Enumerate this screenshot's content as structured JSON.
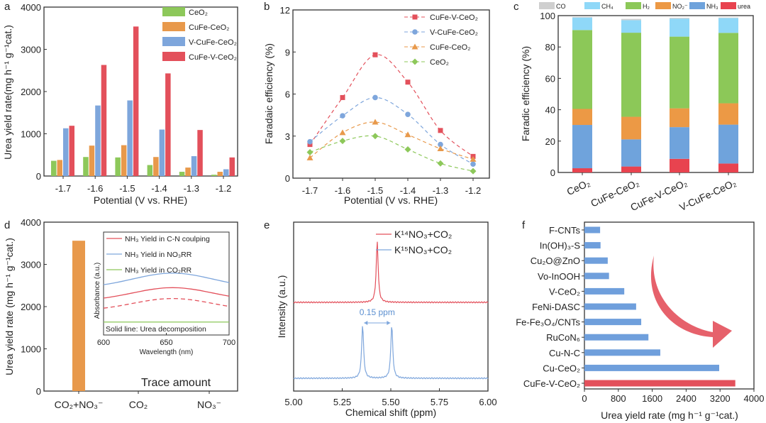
{
  "panel_labels": [
    "a",
    "b",
    "c",
    "d",
    "e",
    "f"
  ],
  "chart_data": [
    {
      "panel": "a",
      "type": "bar",
      "xlabel": "Potential (V vs. RHE)",
      "ylabel": "Urea yield rate(mg h⁻¹ g⁻¹cat.)",
      "ylim": [
        0,
        4000
      ],
      "yticks": [
        "0",
        "1000",
        "2000",
        "3000",
        "4000"
      ],
      "categories": [
        "-1.7",
        "-1.6",
        "-1.5",
        "-1.4",
        "-1.3",
        "-1.2"
      ],
      "series": [
        {
          "name": "CeO₂",
          "color": "#8dc85a",
          "values": [
            360,
            450,
            440,
            260,
            100,
            30
          ]
        },
        {
          "name": "CuFe-CeO₂",
          "color": "#e8994b",
          "values": [
            380,
            720,
            730,
            450,
            200,
            100
          ]
        },
        {
          "name": "V-CuFe-CeO₂",
          "color": "#7ea6dc",
          "values": [
            1130,
            1670,
            1790,
            1100,
            470,
            160
          ]
        },
        {
          "name": "CuFe-V-CeO₂",
          "color": "#e3505b",
          "values": [
            1190,
            2630,
            3540,
            2430,
            1090,
            440
          ]
        }
      ],
      "legend": "top-right"
    },
    {
      "panel": "b",
      "type": "line",
      "xlabel": "Potential (V vs. RHE)",
      "ylabel": "Faradaic efficiency (%)",
      "ylim": [
        0,
        12
      ],
      "yticks": [
        "0",
        "3",
        "6",
        "9",
        "12"
      ],
      "x": [
        "-1.7",
        "-1.6",
        "-1.5",
        "-1.4",
        "-1.3",
        "-1.2"
      ],
      "series": [
        {
          "name": "CuFe-V-CeO₂",
          "color": "#e3505b",
          "marker": "square",
          "values": [
            2.4,
            5.75,
            8.8,
            6.85,
            3.4,
            1.55
          ]
        },
        {
          "name": "V-CuFe-CeO₂",
          "color": "#7ea6dc",
          "marker": "circle",
          "values": [
            2.6,
            4.45,
            5.75,
            4.55,
            2.4,
            1.0
          ]
        },
        {
          "name": "CuFe-CeO₂",
          "color": "#e8994b",
          "marker": "triangle",
          "values": [
            1.45,
            3.25,
            4.0,
            3.1,
            2.1,
            1.35
          ]
        },
        {
          "name": "CeO₂",
          "color": "#8dc85a",
          "marker": "diamond",
          "values": [
            1.85,
            2.65,
            3.0,
            2.05,
            1.05,
            0.5
          ]
        }
      ],
      "legend": "top-right"
    },
    {
      "panel": "c",
      "type": "bar",
      "stacked": true,
      "ylabel": "Faradic efficiency (%)",
      "ylim": [
        0,
        100
      ],
      "yticks": [
        "0",
        "20",
        "40",
        "60",
        "80",
        "100"
      ],
      "categories": [
        "CeO₂",
        "CuFe-CeO₂",
        "CuFe-V-CeO₂",
        "V-CuFe-CeO₂"
      ],
      "series": [
        {
          "name": "urea",
          "color": "#e8434f",
          "values": [
            2.7,
            3.8,
            8.7,
            5.7
          ]
        },
        {
          "name": "NH₃",
          "color": "#6fa3dc",
          "values": [
            27.6,
            17.3,
            20.2,
            24.8
          ]
        },
        {
          "name": "NO₂⁻",
          "color": "#ec9945",
          "values": [
            10.2,
            14.4,
            12.0,
            13.6
          ]
        },
        {
          "name": "H₂",
          "color": "#8cc858",
          "values": [
            50.3,
            53.6,
            45.7,
            44.9
          ]
        },
        {
          "name": "CH₄",
          "color": "#8fd8f8",
          "values": [
            8.0,
            8.0,
            11.5,
            9.5
          ]
        },
        {
          "name": "CO",
          "color": "#cfcfcf",
          "values": [
            0.3,
            0.8,
            0.5,
            0.3
          ]
        }
      ],
      "legend_order": [
        "CO",
        "CH₄",
        "H₂",
        "NO₂⁻",
        "NH₃",
        "urea"
      ],
      "legend": "top"
    },
    {
      "panel": "d",
      "type": "bar",
      "ylabel": "Urea yield rate (mg h⁻¹ g⁻¹cat.)",
      "ylim": [
        0,
        4000
      ],
      "yticks": [
        "0",
        "1000",
        "2000",
        "3000",
        "4000"
      ],
      "categories": [
        "CO₂+NO₃⁻",
        "CO₂",
        "NO₃⁻"
      ],
      "values": [
        3560,
        0,
        0
      ],
      "color": "#e8994b",
      "annotation": "Trace amount",
      "inset": {
        "type": "line",
        "xlabel": "Wavelength (nm)",
        "ylabel": "Absorbance (a.u.)",
        "xlim": [
          600,
          700
        ],
        "xticks": [
          "600",
          "650",
          "700"
        ],
        "note": "Solid line: Urea decomposition",
        "series": [
          {
            "name": "NH₃ Yield in C-N coulping",
            "color": "#e3505b",
            "peak_x": 655,
            "solid_level": 0.62,
            "dashed_level": 0.44
          },
          {
            "name": "NH₃ Yield in NO₃RR",
            "color": "#7ea6dc",
            "peak_x": 655,
            "solid_level": 0.86,
            "dashed_level": 0.86
          },
          {
            "name": "NH₃ Yield in CO₂RR",
            "color": "#8dc85a",
            "peak_x": 655,
            "solid_level": 0.05,
            "dashed_level": 0.05
          }
        ]
      }
    },
    {
      "panel": "e",
      "type": "line",
      "xlabel": "Chemical shift (ppm)",
      "ylabel": "Intensity (a.u.)",
      "xlim": [
        5.0,
        6.0
      ],
      "xticks": [
        "5.00",
        "5.25",
        "5.50",
        "5.75",
        "6.00"
      ],
      "series": [
        {
          "name": "K¹⁴NO₃+CO₂",
          "color": "#e3505b",
          "peaks_ppm": [
            5.43
          ]
        },
        {
          "name": "K¹⁵NO₃+CO₂",
          "color": "#7ea6dc",
          "peaks_ppm": [
            5.355,
            5.505
          ]
        }
      ],
      "annotation": "0.15 ppm",
      "legend": "top-right"
    },
    {
      "panel": "f",
      "type": "bar",
      "orientation": "horizontal",
      "xlabel": "Urea yield rate (mg h⁻¹ g⁻¹cat.)",
      "xlim": [
        0,
        4000
      ],
      "xticks": [
        "0",
        "800",
        "1600",
        "2400",
        "3200",
        "4000"
      ],
      "categories": [
        "F-CNTs",
        "In(OH)₃-S",
        "Cu₂O@ZnO",
        "Vo-InOOH",
        "V-CeO₂",
        "FeNi-DASC",
        "Fe-Fe₃O₄/CNTs",
        "RuCoN₆",
        "Cu-N-C",
        "Cu-CeO₂",
        "CuFe-V-CeO₂"
      ],
      "values": [
        370,
        380,
        550,
        580,
        940,
        1220,
        1340,
        1510,
        1790,
        3180,
        3560
      ],
      "colors": {
        "default": "#6f9fdc",
        "highlight": "#e3505b"
      }
    }
  ]
}
